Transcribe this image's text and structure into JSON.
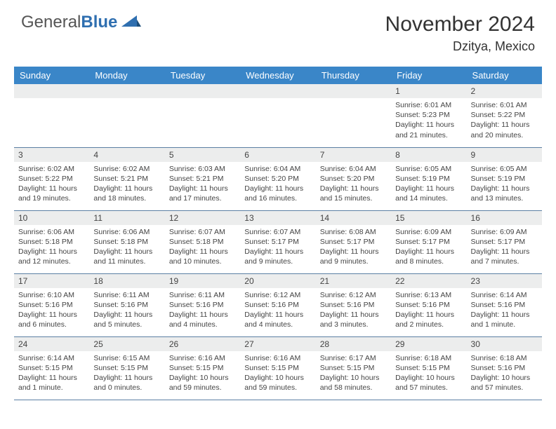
{
  "brand": {
    "name_gray": "General",
    "name_blue": "Blue"
  },
  "title": "November 2024",
  "location": "Dzitya, Mexico",
  "colors": {
    "header_bg": "#3a86c8",
    "daynum_bg": "#eceded",
    "border": "#5b7fa3",
    "text": "#444444",
    "logo_blue": "#2f6fb0"
  },
  "weekdays": [
    "Sunday",
    "Monday",
    "Tuesday",
    "Wednesday",
    "Thursday",
    "Friday",
    "Saturday"
  ],
  "weeks": [
    [
      null,
      null,
      null,
      null,
      null,
      {
        "n": "1",
        "sr": "Sunrise: 6:01 AM",
        "ss": "Sunset: 5:23 PM",
        "d1": "Daylight: 11 hours",
        "d2": "and 21 minutes."
      },
      {
        "n": "2",
        "sr": "Sunrise: 6:01 AM",
        "ss": "Sunset: 5:22 PM",
        "d1": "Daylight: 11 hours",
        "d2": "and 20 minutes."
      }
    ],
    [
      {
        "n": "3",
        "sr": "Sunrise: 6:02 AM",
        "ss": "Sunset: 5:22 PM",
        "d1": "Daylight: 11 hours",
        "d2": "and 19 minutes."
      },
      {
        "n": "4",
        "sr": "Sunrise: 6:02 AM",
        "ss": "Sunset: 5:21 PM",
        "d1": "Daylight: 11 hours",
        "d2": "and 18 minutes."
      },
      {
        "n": "5",
        "sr": "Sunrise: 6:03 AM",
        "ss": "Sunset: 5:21 PM",
        "d1": "Daylight: 11 hours",
        "d2": "and 17 minutes."
      },
      {
        "n": "6",
        "sr": "Sunrise: 6:04 AM",
        "ss": "Sunset: 5:20 PM",
        "d1": "Daylight: 11 hours",
        "d2": "and 16 minutes."
      },
      {
        "n": "7",
        "sr": "Sunrise: 6:04 AM",
        "ss": "Sunset: 5:20 PM",
        "d1": "Daylight: 11 hours",
        "d2": "and 15 minutes."
      },
      {
        "n": "8",
        "sr": "Sunrise: 6:05 AM",
        "ss": "Sunset: 5:19 PM",
        "d1": "Daylight: 11 hours",
        "d2": "and 14 minutes."
      },
      {
        "n": "9",
        "sr": "Sunrise: 6:05 AM",
        "ss": "Sunset: 5:19 PM",
        "d1": "Daylight: 11 hours",
        "d2": "and 13 minutes."
      }
    ],
    [
      {
        "n": "10",
        "sr": "Sunrise: 6:06 AM",
        "ss": "Sunset: 5:18 PM",
        "d1": "Daylight: 11 hours",
        "d2": "and 12 minutes."
      },
      {
        "n": "11",
        "sr": "Sunrise: 6:06 AM",
        "ss": "Sunset: 5:18 PM",
        "d1": "Daylight: 11 hours",
        "d2": "and 11 minutes."
      },
      {
        "n": "12",
        "sr": "Sunrise: 6:07 AM",
        "ss": "Sunset: 5:18 PM",
        "d1": "Daylight: 11 hours",
        "d2": "and 10 minutes."
      },
      {
        "n": "13",
        "sr": "Sunrise: 6:07 AM",
        "ss": "Sunset: 5:17 PM",
        "d1": "Daylight: 11 hours",
        "d2": "and 9 minutes."
      },
      {
        "n": "14",
        "sr": "Sunrise: 6:08 AM",
        "ss": "Sunset: 5:17 PM",
        "d1": "Daylight: 11 hours",
        "d2": "and 9 minutes."
      },
      {
        "n": "15",
        "sr": "Sunrise: 6:09 AM",
        "ss": "Sunset: 5:17 PM",
        "d1": "Daylight: 11 hours",
        "d2": "and 8 minutes."
      },
      {
        "n": "16",
        "sr": "Sunrise: 6:09 AM",
        "ss": "Sunset: 5:17 PM",
        "d1": "Daylight: 11 hours",
        "d2": "and 7 minutes."
      }
    ],
    [
      {
        "n": "17",
        "sr": "Sunrise: 6:10 AM",
        "ss": "Sunset: 5:16 PM",
        "d1": "Daylight: 11 hours",
        "d2": "and 6 minutes."
      },
      {
        "n": "18",
        "sr": "Sunrise: 6:11 AM",
        "ss": "Sunset: 5:16 PM",
        "d1": "Daylight: 11 hours",
        "d2": "and 5 minutes."
      },
      {
        "n": "19",
        "sr": "Sunrise: 6:11 AM",
        "ss": "Sunset: 5:16 PM",
        "d1": "Daylight: 11 hours",
        "d2": "and 4 minutes."
      },
      {
        "n": "20",
        "sr": "Sunrise: 6:12 AM",
        "ss": "Sunset: 5:16 PM",
        "d1": "Daylight: 11 hours",
        "d2": "and 4 minutes."
      },
      {
        "n": "21",
        "sr": "Sunrise: 6:12 AM",
        "ss": "Sunset: 5:16 PM",
        "d1": "Daylight: 11 hours",
        "d2": "and 3 minutes."
      },
      {
        "n": "22",
        "sr": "Sunrise: 6:13 AM",
        "ss": "Sunset: 5:16 PM",
        "d1": "Daylight: 11 hours",
        "d2": "and 2 minutes."
      },
      {
        "n": "23",
        "sr": "Sunrise: 6:14 AM",
        "ss": "Sunset: 5:16 PM",
        "d1": "Daylight: 11 hours",
        "d2": "and 1 minute."
      }
    ],
    [
      {
        "n": "24",
        "sr": "Sunrise: 6:14 AM",
        "ss": "Sunset: 5:15 PM",
        "d1": "Daylight: 11 hours",
        "d2": "and 1 minute."
      },
      {
        "n": "25",
        "sr": "Sunrise: 6:15 AM",
        "ss": "Sunset: 5:15 PM",
        "d1": "Daylight: 11 hours",
        "d2": "and 0 minutes."
      },
      {
        "n": "26",
        "sr": "Sunrise: 6:16 AM",
        "ss": "Sunset: 5:15 PM",
        "d1": "Daylight: 10 hours",
        "d2": "and 59 minutes."
      },
      {
        "n": "27",
        "sr": "Sunrise: 6:16 AM",
        "ss": "Sunset: 5:15 PM",
        "d1": "Daylight: 10 hours",
        "d2": "and 59 minutes."
      },
      {
        "n": "28",
        "sr": "Sunrise: 6:17 AM",
        "ss": "Sunset: 5:15 PM",
        "d1": "Daylight: 10 hours",
        "d2": "and 58 minutes."
      },
      {
        "n": "29",
        "sr": "Sunrise: 6:18 AM",
        "ss": "Sunset: 5:15 PM",
        "d1": "Daylight: 10 hours",
        "d2": "and 57 minutes."
      },
      {
        "n": "30",
        "sr": "Sunrise: 6:18 AM",
        "ss": "Sunset: 5:16 PM",
        "d1": "Daylight: 10 hours",
        "d2": "and 57 minutes."
      }
    ]
  ]
}
